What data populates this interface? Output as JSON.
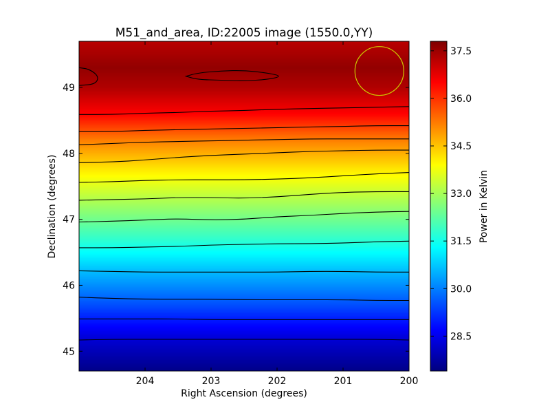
{
  "chart_data": {
    "type": "heatmap",
    "title": "M51_and_area, ID:22005 image (1550.0,YY)",
    "xlabel": "Right Ascension (degrees)",
    "ylabel": "Declination (degrees)",
    "colorbar_label": "Power in Kelvin",
    "x_range": [
      205,
      200
    ],
    "y_range": [
      44.7,
      49.7
    ],
    "x_ticks": [
      204,
      203,
      202,
      201,
      200
    ],
    "x_tick_labels": [
      "204",
      "203",
      "202",
      "201",
      "200"
    ],
    "y_ticks": [
      45,
      46,
      47,
      48,
      49
    ],
    "y_tick_labels": [
      "45",
      "46",
      "47",
      "48",
      "49"
    ],
    "value_range": [
      27.4,
      37.8
    ],
    "colorbar_ticks": [
      28.5,
      30.0,
      31.5,
      33.0,
      34.5,
      36.0,
      37.5
    ],
    "colorbar_tick_labels": [
      "28.5",
      "30.0",
      "31.5",
      "33.0",
      "34.5",
      "36.0",
      "37.5"
    ],
    "colormap": "jet",
    "colormap_stops": [
      "#00007f",
      "#0000ff",
      "#007fff",
      "#00ffff",
      "#7fff7f",
      "#ffff00",
      "#ff7f00",
      "#ff0000",
      "#7f0000"
    ],
    "contour_color": "#000000",
    "value_profile": {
      "declination": [
        44.7,
        45.2,
        45.7,
        46.2,
        46.7,
        47.2,
        47.7,
        48.2,
        48.6,
        49.0,
        49.3,
        49.7
      ],
      "power": [
        27.5,
        28.3,
        29.5,
        30.6,
        31.8,
        32.9,
        34.0,
        35.2,
        36.5,
        37.3,
        37.6,
        37.2
      ]
    },
    "contours": [
      {
        "ra": [
          205,
          204.5,
          204,
          203.5,
          203,
          202.5,
          202,
          201.5,
          201,
          200.5,
          200
        ],
        "dec": [
          45.17,
          45.18,
          45.18,
          45.18,
          45.18,
          45.18,
          45.18,
          45.18,
          45.18,
          45.18,
          45.17
        ]
      },
      {
        "ra": [
          205,
          204.5,
          204,
          203.5,
          203,
          202.5,
          202,
          201.5,
          201,
          200.5,
          200
        ],
        "dec": [
          45.49,
          45.49,
          45.49,
          45.49,
          45.48,
          45.48,
          45.48,
          45.48,
          45.48,
          45.48,
          45.48
        ]
      },
      {
        "ra": [
          205,
          204.5,
          204,
          203.5,
          203,
          202.5,
          202,
          201.5,
          201,
          200.5,
          200
        ],
        "dec": [
          45.82,
          45.8,
          45.79,
          45.79,
          45.79,
          45.78,
          45.78,
          45.78,
          45.78,
          45.77,
          45.77
        ]
      },
      {
        "ra": [
          205,
          204.5,
          204,
          203.5,
          203,
          202.5,
          202,
          201.5,
          201,
          200.5,
          200
        ],
        "dec": [
          46.22,
          46.21,
          46.2,
          46.2,
          46.2,
          46.2,
          46.2,
          46.21,
          46.21,
          46.2,
          46.2
        ]
      },
      {
        "ra": [
          205,
          204.5,
          204,
          203.5,
          203,
          202.5,
          202,
          201.5,
          201,
          200.5,
          200
        ],
        "dec": [
          46.57,
          46.57,
          46.58,
          46.59,
          46.61,
          46.62,
          46.63,
          46.63,
          46.64,
          46.66,
          46.67
        ]
      },
      {
        "ra": [
          205,
          204.5,
          204,
          203.5,
          203,
          202.5,
          202,
          201.5,
          201,
          200.5,
          200
        ],
        "dec": [
          46.96,
          46.97,
          46.99,
          47.01,
          46.99,
          47.0,
          47.04,
          47.06,
          47.09,
          47.11,
          47.12
        ]
      },
      {
        "ra": [
          205,
          204.5,
          204,
          203.5,
          203,
          202.5,
          202,
          201.5,
          201,
          200.5,
          200
        ],
        "dec": [
          47.29,
          47.3,
          47.31,
          47.33,
          47.33,
          47.32,
          47.34,
          47.38,
          47.41,
          47.42,
          47.42
        ]
      },
      {
        "ra": [
          205,
          204.5,
          204,
          203.5,
          203,
          202.5,
          202,
          201.5,
          201,
          200.5,
          200
        ],
        "dec": [
          47.56,
          47.57,
          47.59,
          47.6,
          47.6,
          47.6,
          47.61,
          47.63,
          47.66,
          47.69,
          47.71
        ]
      },
      {
        "ra": [
          205,
          204.5,
          204,
          203.5,
          203,
          202.5,
          202,
          201.5,
          201,
          200.5,
          200
        ],
        "dec": [
          47.86,
          47.87,
          47.9,
          47.94,
          47.97,
          47.99,
          48.01,
          48.03,
          48.04,
          48.05,
          48.05
        ]
      },
      {
        "ra": [
          205,
          204.5,
          204,
          203.5,
          203,
          202.5,
          202,
          201.5,
          201,
          200.5,
          200
        ],
        "dec": [
          48.13,
          48.15,
          48.17,
          48.18,
          48.19,
          48.2,
          48.21,
          48.22,
          48.22,
          48.22,
          48.22
        ]
      },
      {
        "ra": [
          205,
          204.5,
          204,
          203.5,
          203,
          202.5,
          202,
          201.5,
          201,
          200.5,
          200
        ],
        "dec": [
          48.33,
          48.33,
          48.35,
          48.36,
          48.37,
          48.38,
          48.39,
          48.4,
          48.41,
          48.42,
          48.42
        ]
      },
      {
        "ra": [
          205,
          204.5,
          204,
          203.5,
          203,
          202.5,
          202,
          201.5,
          201,
          200.5,
          200
        ],
        "dec": [
          48.59,
          48.59,
          48.61,
          48.62,
          48.64,
          48.65,
          48.67,
          48.68,
          48.69,
          48.7,
          48.71
        ]
      },
      {
        "ra": [
          205,
          204.85,
          204.7,
          204.75,
          205
        ],
        "dec": [
          49.3,
          49.28,
          49.17,
          49.05,
          49.03
        ],
        "closed": false
      },
      {
        "ra": [
          203.38,
          203.2,
          202.85,
          202.5,
          202.15,
          201.92,
          202.15,
          202.5,
          202.85,
          203.2,
          203.38
        ],
        "dec": [
          49.17,
          49.22,
          49.25,
          49.26,
          49.22,
          49.17,
          49.12,
          49.1,
          49.11,
          49.12,
          49.17
        ],
        "closed": true
      }
    ],
    "beam_marker": {
      "ra": 200.45,
      "dec": 49.25,
      "radius_deg": 0.37,
      "color": "#cccc00"
    }
  }
}
